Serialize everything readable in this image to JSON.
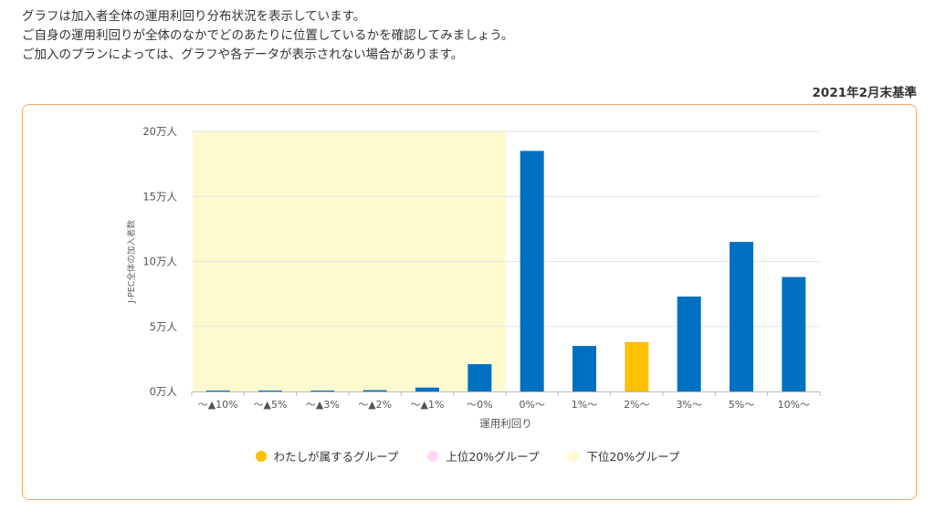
{
  "intro": {
    "lines": [
      "グラフは加入者全体の運用利回り分布状況を表示しています。",
      "ご自身の運用利回りが全体のなかでどのあたりに位置しているかを確認してみましょう。",
      "ご加入のプランによっては、グラフや各データが表示されない場合があります。"
    ]
  },
  "as_of": "2021年2月末基準",
  "chart_data": {
    "type": "bar",
    "categories": [
      "～▲10%",
      "～▲5%",
      "～▲3%",
      "～▲2%",
      "～▲1%",
      "～0%",
      "0%～",
      "1%～",
      "2%～",
      "3%～",
      "5%～",
      "10%～"
    ],
    "values": [
      0.05,
      0.05,
      0.05,
      0.1,
      0.3,
      2.1,
      18.5,
      3.5,
      3.8,
      7.3,
      11.5,
      8.8
    ],
    "value_unit": "万人",
    "xlabel": "運用利回り",
    "ylabel": "J-PEC全体の加入者数",
    "ylim": [
      0,
      20
    ],
    "yticks": [
      "0万人",
      "5万人",
      "10万人",
      "15万人",
      "20万人"
    ],
    "ytick_values": [
      0,
      5,
      10,
      15,
      20
    ],
    "highlight_index": 8,
    "shaded_range": [
      0,
      5
    ],
    "colors": {
      "bar": "#0070c0",
      "highlight": "#ffc000",
      "shade": "#fff9d0",
      "grid": "#e6e6e6"
    },
    "grid": true,
    "legend_position": "bottom",
    "legend": [
      {
        "label": "わたしが属するグループ",
        "color": "#ffc000"
      },
      {
        "label": "上位20%グループ",
        "color": "#ffd6f5"
      },
      {
        "label": "下位20%グループ",
        "color": "#fff9d0"
      }
    ]
  }
}
